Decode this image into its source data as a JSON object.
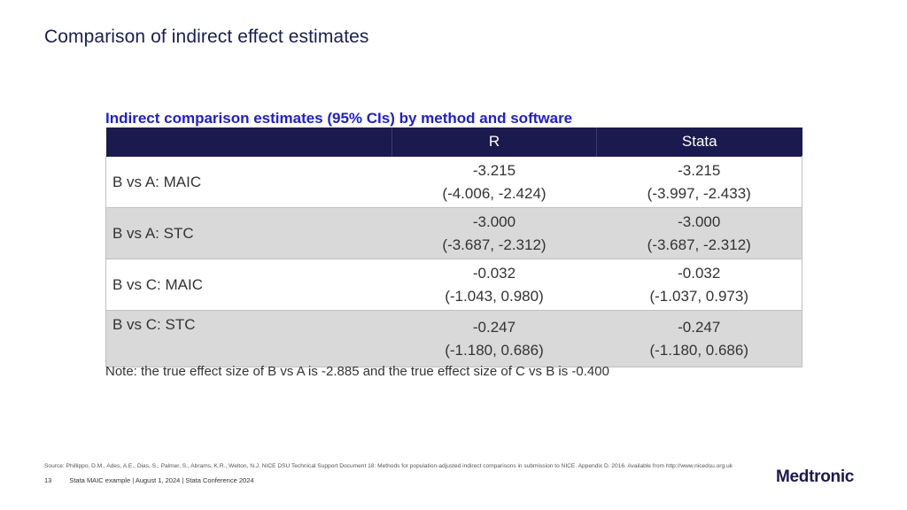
{
  "slide": {
    "title": "Comparison of indirect effect estimates"
  },
  "table": {
    "caption": "Indirect comparison estimates (95% CIs) by method and software",
    "columns": [
      "",
      "R",
      "Stata"
    ],
    "rows": [
      {
        "label": "B vs A: MAIC",
        "r_est": "-3.215",
        "r_ci": "(-4.006, -2.424)",
        "stata_est": "-3.215",
        "stata_ci": "(-3.997, -2.433)"
      },
      {
        "label": "B vs A: STC",
        "r_est": "-3.000",
        "r_ci": "(-3.687, -2.312)",
        "stata_est": "-3.000",
        "stata_ci": "(-3.687, -2.312)"
      },
      {
        "label": "B vs C: MAIC",
        "r_est": "-0.032",
        "r_ci": "(-1.043, 0.980)",
        "stata_est": "-0.032",
        "stata_ci": "(-1.037, 0.973)"
      },
      {
        "label": "B vs C: STC",
        "r_est": "-0.247",
        "r_ci": "(-1.180, 0.686)",
        "stata_est": "-0.247",
        "stata_ci": "(-1.180, 0.686)"
      }
    ]
  },
  "note": "Note: the true effect size of B vs A is -2.885 and the true effect size of C vs B is -0.400",
  "source": "Source: Phillippo, D.M., Ades, A.E., Dias, S., Palmer, S., Abrams, K.R., Welton, N.J. NICE DSU Technical Support Document 18: Methods for population-adjusted indirect comparisons in submission to NICE. Appendix D. 2016. Available from http://www.nicedsu.org.uk",
  "footer": {
    "page_number": "13",
    "text": "Stata MAIC example   | August 1, 2024   |   Stata Conference 2024"
  },
  "logo": {
    "text": "Medtronic"
  },
  "colors": {
    "header_bg": "#1b1a4f",
    "caption": "#1f1fcc",
    "shaded_row": "#d9d9d9"
  }
}
